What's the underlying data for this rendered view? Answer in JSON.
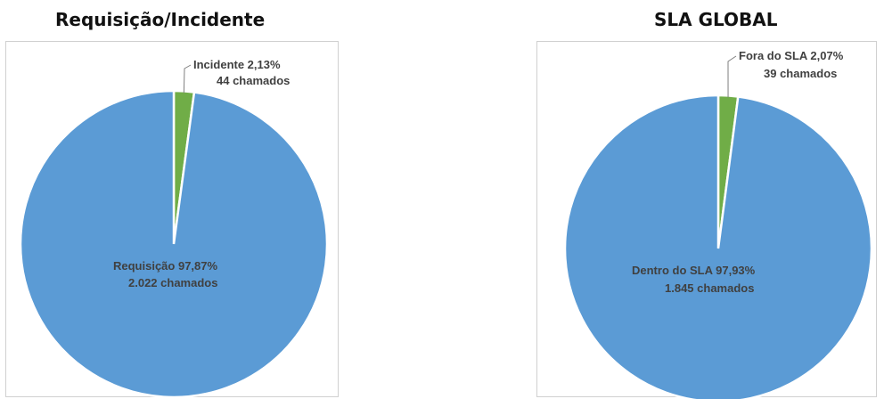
{
  "titles": {
    "left": "Requisição/Incidente",
    "right": "SLA GLOBAL"
  },
  "chart_data": [
    {
      "type": "pie",
      "title": "Requisição/Incidente",
      "slices": [
        {
          "name": "Requisição",
          "percent": 97.87,
          "count": 2022,
          "label_line1": "Requisição 97,87%",
          "label_line2": "2.022 chamados",
          "color": "#5b9bd5"
        },
        {
          "name": "Incidente",
          "percent": 2.13,
          "count": 44,
          "label_line1": "Incidente 2,13%",
          "label_line2": "44 chamados",
          "color": "#70ad47"
        }
      ]
    },
    {
      "type": "pie",
      "title": "SLA GLOBAL",
      "slices": [
        {
          "name": "Dentro do SLA",
          "percent": 97.93,
          "count": 1845,
          "label_line1": "Dentro do SLA 97,93%",
          "label_line2": "1.845 chamados",
          "color": "#5b9bd5"
        },
        {
          "name": "Fora do SLA",
          "percent": 2.07,
          "count": 39,
          "label_line1": "Fora do SLA 2,07%",
          "label_line2": "39 chamados",
          "color": "#70ad47"
        }
      ]
    }
  ]
}
